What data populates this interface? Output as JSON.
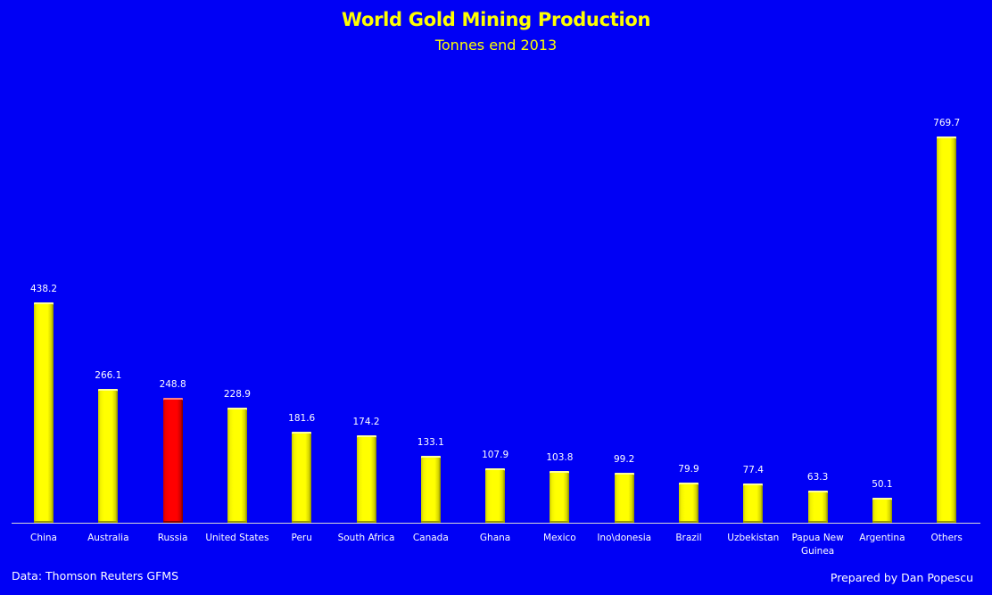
{
  "chart_data": {
    "type": "bar",
    "title": "World Gold Mining Production",
    "subtitle": "Tonnes end 2013",
    "xlabel": "",
    "ylabel": "Tonnes",
    "categories": [
      "China",
      "Australia",
      "Russia",
      "United States",
      "Peru",
      "South Africa",
      "Canada",
      "Ghana",
      "Mexico",
      "Ino\\donesia",
      "Brazil",
      "Uzbekistan",
      "Papua New Guinea",
      "Argentina",
      "Others"
    ],
    "values": [
      438.2,
      266.1,
      248.8,
      228.9,
      181.6,
      174.2,
      133.1,
      107.9,
      103.8,
      99.2,
      79.9,
      77.4,
      63.3,
      50.1,
      769.7
    ],
    "value_labels": [
      "438.2",
      "266.1",
      "248.8",
      "228.9",
      "181.6",
      "174.2",
      "133.1",
      "107.9",
      "103.8",
      "99.2",
      "79.9",
      "77.4",
      "63.3",
      "50.1",
      "769.7"
    ],
    "bar_colors": [
      "#ffff00",
      "#ffff00",
      "#ff0000",
      "#ffff00",
      "#ffff00",
      "#ffff00",
      "#ffff00",
      "#ffff00",
      "#ffff00",
      "#ffff00",
      "#ffff00",
      "#ffff00",
      "#ffff00",
      "#ffff00",
      "#ffff00"
    ],
    "highlighted_category": "Russia",
    "ylim": [
      0,
      769.7
    ],
    "grid": false,
    "legend": null,
    "data_labels": true,
    "background_color": "#0000f5",
    "title_color": "#ffff00"
  },
  "footer": {
    "source": "Data: Thomson Reuters GFMS",
    "credit": "Prepared by Dan Popescu"
  }
}
